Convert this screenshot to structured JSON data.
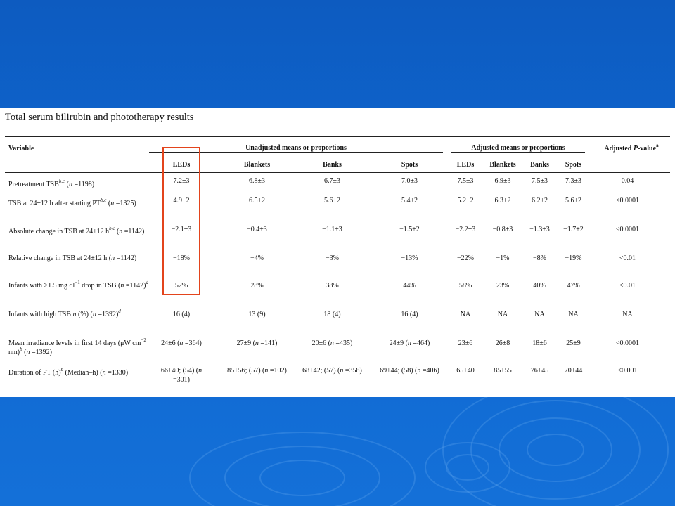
{
  "caption": "Total serum bilirubin and phototherapy results",
  "headers": {
    "variable": "Variable",
    "unadjusted_group": "Unadjusted means or proportions",
    "adjusted_group": "Adjusted means or proportions",
    "pvalue": "Adjusted P-value",
    "unadjusted_cols": [
      "LEDs",
      "Blankets",
      "Banks",
      "Spots"
    ],
    "adjusted_cols": [
      "LEDs",
      "Blankets",
      "Banks",
      "Spots"
    ]
  },
  "rows": [
    {
      "label": "Pretreatment TSB",
      "unadj": [
        "7.2±3",
        "6.8±3",
        "6.7±3",
        "7.0±3"
      ],
      "adj": [
        "7.5±3",
        "6.9±3",
        "7.5±3",
        "7.3±3"
      ],
      "p": "0.04"
    },
    {
      "label": "TSB at 24±12 h after starting PT",
      "unadj": [
        "4.9±2",
        "6.5±2",
        "5.6±2",
        "5.4±2"
      ],
      "adj": [
        "5.2±2",
        "6.3±2",
        "6.2±2",
        "5.6±2"
      ],
      "p": "<0.0001"
    },
    {
      "label": "Absolute change in TSB at 24±12 h",
      "unadj": [
        "−2.1±3",
        "−0.4±3",
        "−1.1±3",
        "−1.5±2"
      ],
      "adj": [
        "−2.2±3",
        "−0.8±3",
        "−1.3±3",
        "−1.7±2"
      ],
      "p": "<0.0001"
    },
    {
      "label": "Relative change in TSB at 24±12 h",
      "unadj": [
        "−18%",
        "−4%",
        "−3%",
        "−13%"
      ],
      "adj": [
        "−22%",
        "−1%",
        "−8%",
        "−19%"
      ],
      "p": "<0.01"
    },
    {
      "label": "Infants with >1.5 mg dl",
      "unadj": [
        "52%",
        "28%",
        "38%",
        "44%"
      ],
      "adj": [
        "58%",
        "23%",
        "40%",
        "47%"
      ],
      "p": "<0.01"
    },
    {
      "label": "Infants with high TSB",
      "unadj": [
        "16 (4)",
        "13 (9)",
        "18 (4)",
        "16 (4)"
      ],
      "adj": [
        "NA",
        "NA",
        "NA",
        "NA"
      ],
      "p": "NA"
    },
    {
      "label": "Mean irradiance levels in first 14 days",
      "unadj": [
        "24±6",
        "27±9",
        "20±6",
        "24±9"
      ],
      "adj": [
        "23±6",
        "26±8",
        "18±6",
        "25±9"
      ],
      "p": "<0.0001"
    },
    {
      "label": "Duration of PT (h)",
      "unadj": [
        "66±40; (54)",
        "85±56; (57)",
        "68±42; (57)",
        "69±44; (58)"
      ],
      "adj": [
        "65±40",
        "85±55",
        "76±45",
        "70±44"
      ],
      "p": "<0.001"
    }
  ]
}
